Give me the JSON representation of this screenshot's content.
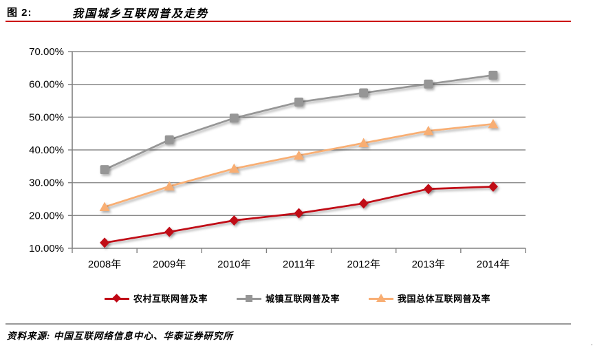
{
  "header": {
    "figure_label": "图 2:",
    "title": "我国城乡互联网普及走势"
  },
  "chart_data": {
    "type": "line",
    "categories": [
      "2008年",
      "2009年",
      "2010年",
      "2011年",
      "2012年",
      "2013年",
      "2014年"
    ],
    "series": [
      {
        "name": "农村互联网普及率",
        "marker": "diamond",
        "color": "#C00714",
        "values": [
          11.7,
          15.0,
          18.5,
          20.7,
          23.7,
          28.1,
          28.8
        ]
      },
      {
        "name": "城镇互联网普及率",
        "marker": "square",
        "color": "#969696",
        "values": [
          34.0,
          43.1,
          49.7,
          54.6,
          57.4,
          60.1,
          62.8
        ]
      },
      {
        "name": "我国总体互联网普及率",
        "marker": "triangle",
        "color": "#F8AE73",
        "values": [
          22.6,
          28.9,
          34.3,
          38.3,
          42.1,
          45.8,
          47.9
        ]
      }
    ],
    "ylim": [
      10,
      70
    ],
    "ytick_step": 10,
    "yticks_top_to_bottom": [
      "70.00%",
      "60.00%",
      "50.00%",
      "40.00%",
      "30.00%",
      "20.00%",
      "10.00%"
    ],
    "grid": true,
    "legend_position": "bottom"
  },
  "footer": {
    "source": "资料来源: 中国互联网络信息中心、华泰证券研究所",
    "stray_dot": "."
  },
  "colors": {
    "title_rule": "#CC0000",
    "separator": "#999999",
    "grid": "#8a8a8a",
    "axis": "#808080"
  }
}
